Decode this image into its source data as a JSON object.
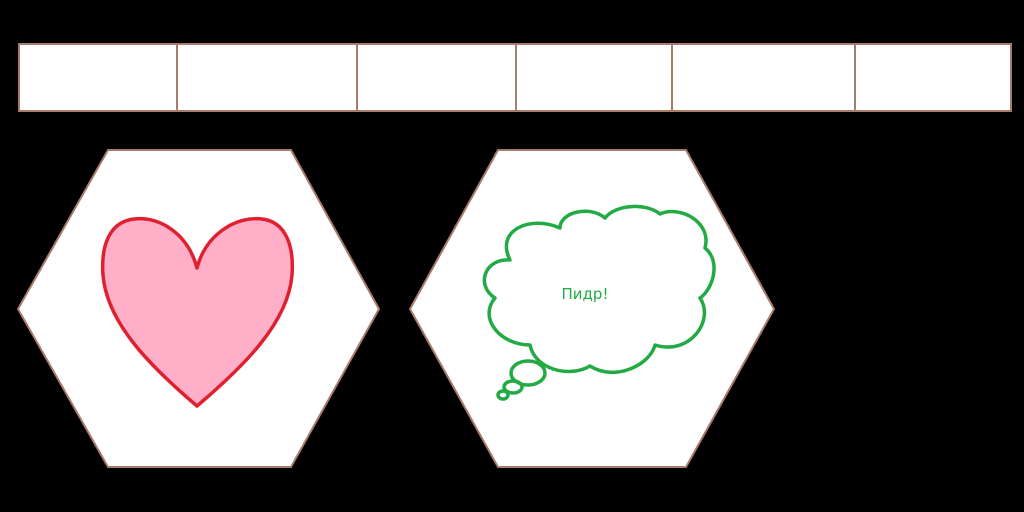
{
  "colors": {
    "background": "#000000",
    "panel_fill": "#ffffff",
    "panel_border": "#a87c68",
    "heart_fill": "#ffb0c8",
    "heart_stroke": "#e0202e",
    "cloud_stroke": "#22aa44",
    "cloud_text": "#22aa44"
  },
  "top_bar": {
    "cell_count": 6
  },
  "tiles": [
    {
      "icon": "heart-icon"
    },
    {
      "icon": "thought-bubble-icon",
      "text": "Пидр!"
    }
  ]
}
